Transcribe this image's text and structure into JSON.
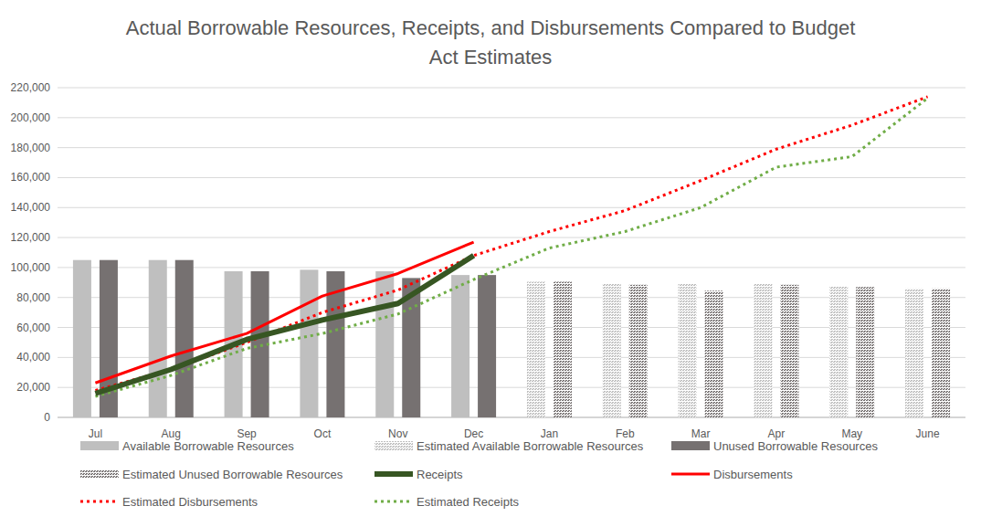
{
  "chart_data": {
    "type": "bar",
    "title": "Actual Borrowable Resources, Receipts, and Disbursements Compared to Budget Act Estimates",
    "categories": [
      "Jul",
      "Aug",
      "Sep",
      "Oct",
      "Nov",
      "Dec",
      "Jan",
      "Feb",
      "Mar",
      "Apr",
      "May",
      "June"
    ],
    "ylim": [
      0,
      220000
    ],
    "yticks": [
      0,
      {
        "value": 20000,
        "label": "20,000"
      },
      {
        "value": 40000,
        "label": "40,000"
      },
      {
        "value": 60000,
        "label": "60,000"
      },
      {
        "value": 80000,
        "label": "80,000"
      },
      {
        "value": 100000,
        "label": "100,000"
      },
      {
        "value": 120000,
        "label": "120,000"
      },
      {
        "value": 140000,
        "label": "140,000"
      },
      {
        "value": 160000,
        "label": "160,000"
      },
      {
        "value": 180000,
        "label": "180,000"
      },
      {
        "value": 200000,
        "label": "200,000"
      },
      {
        "value": 220000,
        "label": "220,000"
      }
    ],
    "grid": true,
    "legend": "bottom",
    "series": [
      {
        "name": "Available Borrowable Resources",
        "type": "bar",
        "color": "#bfbfbf",
        "line_style": "solid",
        "values": [
          105000,
          105000,
          97500,
          98500,
          97500,
          95000,
          null,
          null,
          null,
          null,
          null,
          null
        ]
      },
      {
        "name": "Estimated Available Borrowable Resources",
        "type": "bar",
        "color": "#bfbfbf",
        "line_style": "dotted",
        "values": [
          null,
          null,
          null,
          null,
          null,
          null,
          90500,
          89000,
          89500,
          89000,
          87500,
          86000
        ]
      },
      {
        "name": "Unused Borrowable Resources",
        "type": "bar",
        "color": "#767171",
        "line_style": "solid",
        "values": [
          105000,
          105000,
          97500,
          97500,
          93000,
          95000,
          null,
          null,
          null,
          null,
          null,
          null
        ]
      },
      {
        "name": "Estimated Unused Borrowable Resources",
        "type": "bar",
        "color": "#767171",
        "line_style": "dotted",
        "values": [
          null,
          null,
          null,
          null,
          null,
          null,
          90500,
          88500,
          84500,
          88500,
          87000,
          86000
        ]
      },
      {
        "name": "Receipts",
        "type": "line",
        "color": "#375623",
        "line_style": "solid",
        "values": [
          16000,
          32000,
          52000,
          65000,
          76000,
          108000,
          null,
          null,
          null,
          null,
          null,
          null
        ]
      },
      {
        "name": "Disbursements",
        "type": "line",
        "color": "#ff0000",
        "line_style": "solid",
        "values": [
          23000,
          41000,
          56000,
          81000,
          96000,
          117000,
          null,
          null,
          null,
          null,
          null,
          null
        ]
      },
      {
        "name": "Estimated Disbursements",
        "type": "line",
        "color": "#ff0000",
        "line_style": "dotted",
        "values": [
          18000,
          32000,
          50000,
          70000,
          85000,
          108000,
          124000,
          138000,
          158000,
          179000,
          195000,
          214000
        ]
      },
      {
        "name": "Estimated Receipts",
        "type": "line",
        "color": "#70ad47",
        "line_style": "dotted",
        "values": [
          14000,
          28000,
          46000,
          56000,
          69000,
          92000,
          113000,
          124000,
          140000,
          167000,
          174000,
          213000
        ]
      }
    ]
  }
}
